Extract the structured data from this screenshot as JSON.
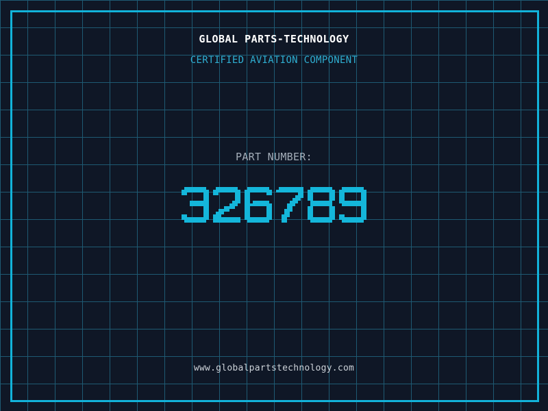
{
  "page": {
    "header": {
      "title": "GLOBAL PARTS-TECHNOLOGY",
      "subtitle": "CERTIFIED AVIATION COMPONENT"
    },
    "part": {
      "label": "PART NUMBER:",
      "value": "326789"
    },
    "footer": {
      "url": "www.globalpartstechnology.com"
    }
  },
  "colors": {
    "background": "#0f1726",
    "grid_line": "#1e5a73",
    "frame_border": "#12b3da",
    "title_text": "#ffffff",
    "subtitle_text": "#2fafd2",
    "label_text": "#a4aeb9",
    "digit_color": "#14b6da",
    "footer_text": "#ccd2d8"
  }
}
